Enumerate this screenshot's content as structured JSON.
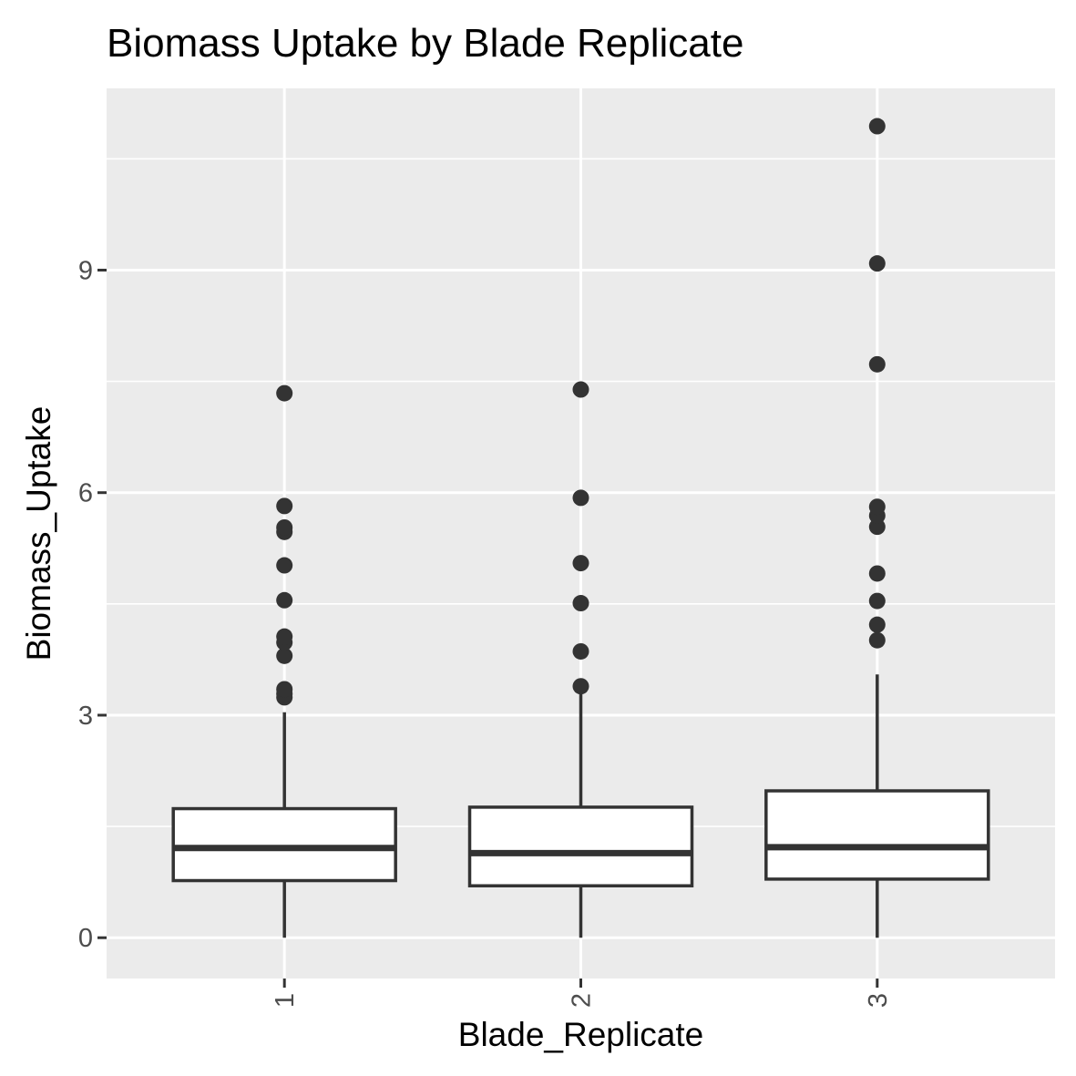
{
  "chart_data": {
    "type": "boxplot",
    "title": "Biomass Uptake by Blade Replicate",
    "xlabel": "Blade_Replicate",
    "ylabel": "Biomass_Uptake",
    "ylim": [
      -0.55,
      11.45
    ],
    "y_ticks": [
      0,
      3,
      6,
      9
    ],
    "y_minor_ticks": [
      1.5,
      4.5,
      7.5,
      10.5
    ],
    "grid": true,
    "legend": "none",
    "colors": {
      "panel": "#ebebeb",
      "grid": "#ffffff",
      "box_fill": "#ffffff",
      "box_stroke": "#333333",
      "outlier": "#333333",
      "tick_label": "#4d4d4d",
      "tick_mark": "#333333"
    },
    "categories": [
      "1",
      "2",
      "3"
    ],
    "boxes": [
      {
        "category": "1",
        "whisker_low": 0.0,
        "q1": 0.77,
        "median": 1.21,
        "q3": 1.74,
        "whisker_high": 3.04,
        "outliers": [
          3.24,
          3.29,
          3.35,
          3.8,
          3.98,
          4.06,
          4.55,
          5.02,
          5.47,
          5.53,
          5.82,
          7.34
        ]
      },
      {
        "category": "2",
        "whisker_low": 0.0,
        "q1": 0.7,
        "median": 1.14,
        "q3": 1.76,
        "whisker_high": 3.31,
        "outliers": [
          3.39,
          3.86,
          4.51,
          5.05,
          5.93,
          7.39
        ]
      },
      {
        "category": "3",
        "whisker_low": 0.0,
        "q1": 0.79,
        "median": 1.22,
        "q3": 1.98,
        "whisker_high": 3.55,
        "outliers": [
          4.01,
          4.22,
          4.54,
          4.91,
          5.54,
          5.69,
          5.81,
          7.73,
          9.09,
          10.94
        ]
      }
    ]
  }
}
